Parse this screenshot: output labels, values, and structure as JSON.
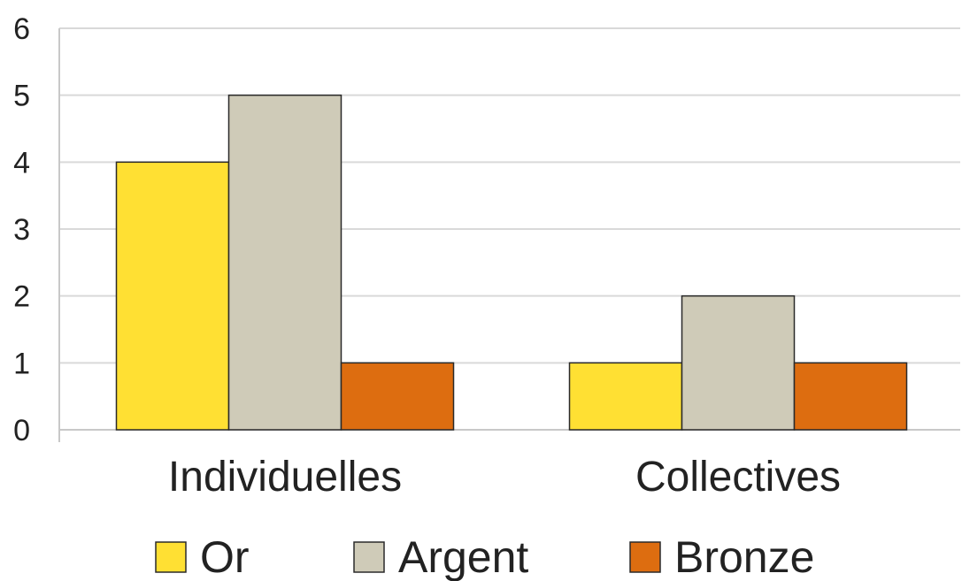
{
  "chart_data": {
    "type": "bar",
    "categories": [
      "Individuelles",
      "Collectives"
    ],
    "series": [
      {
        "name": "Or",
        "values": [
          4,
          1
        ],
        "color": "#ffe033"
      },
      {
        "name": "Argent",
        "values": [
          5,
          2
        ],
        "color": "#cfcbb8"
      },
      {
        "name": "Bronze",
        "values": [
          1,
          1
        ],
        "color": "#dd6d10"
      }
    ],
    "ylim": [
      0,
      6
    ],
    "yticks": [
      0,
      1,
      2,
      3,
      4,
      5,
      6
    ],
    "grid": true,
    "legend": "bottom",
    "title": "",
    "xlabel": "",
    "ylabel": ""
  }
}
